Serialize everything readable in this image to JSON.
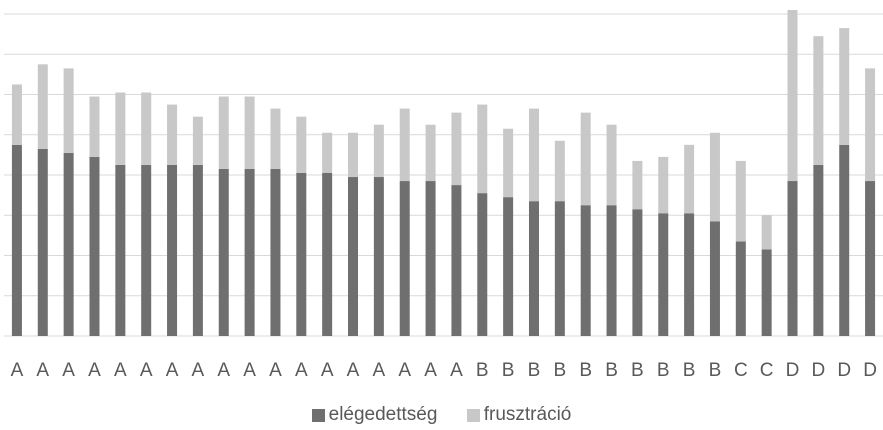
{
  "chart_data": {
    "type": "bar",
    "stacked": true,
    "categories": [
      "A",
      "A",
      "A",
      "A",
      "A",
      "A",
      "A",
      "A",
      "A",
      "A",
      "A",
      "A",
      "A",
      "A",
      "A",
      "A",
      "A",
      "A",
      "B",
      "B",
      "B",
      "B",
      "B",
      "B",
      "B",
      "B",
      "B",
      "B",
      "C",
      "C",
      "D",
      "D",
      "D",
      "D"
    ],
    "series": [
      {
        "name": "elégedettség",
        "color": "#6f6f6f",
        "values": [
          4.75,
          4.65,
          4.55,
          4.45,
          4.25,
          4.25,
          4.25,
          4.25,
          4.15,
          4.15,
          4.15,
          4.05,
          4.05,
          3.95,
          3.95,
          3.85,
          3.85,
          3.75,
          3.55,
          3.45,
          3.35,
          3.35,
          3.25,
          3.25,
          3.15,
          3.05,
          3.05,
          2.85,
          2.35,
          2.15,
          3.85,
          4.25,
          4.75,
          3.85
        ]
      },
      {
        "name": "frusztráció",
        "color": "#c8c8c8",
        "values": [
          1.5,
          2.1,
          2.1,
          1.5,
          1.8,
          1.8,
          1.5,
          1.2,
          1.8,
          1.8,
          1.5,
          1.4,
          1.0,
          1.1,
          1.3,
          1.8,
          1.4,
          1.8,
          2.2,
          1.7,
          2.3,
          1.5,
          2.3,
          2.0,
          1.2,
          1.4,
          1.7,
          2.2,
          2.0,
          0.85,
          4.25,
          3.2,
          2.9,
          2.8
        ]
      }
    ],
    "ylim": [
      0,
      8.1
    ],
    "grid": true,
    "legend": "bottom-center"
  }
}
